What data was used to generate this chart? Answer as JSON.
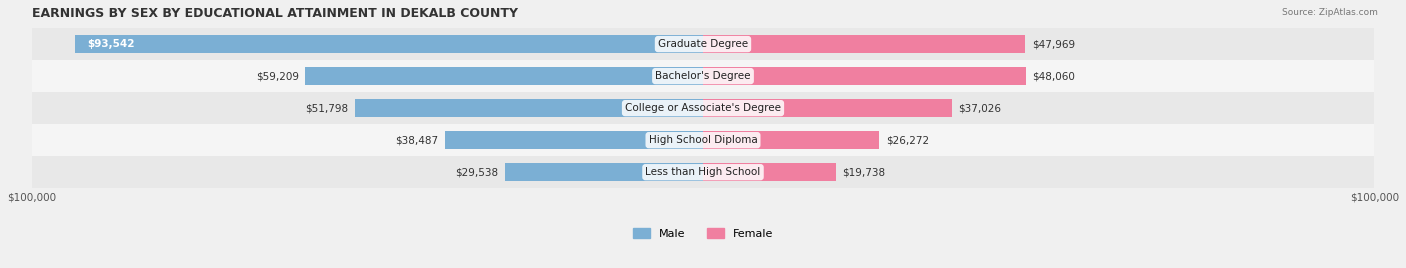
{
  "title": "EARNINGS BY SEX BY EDUCATIONAL ATTAINMENT IN DEKALB COUNTY",
  "source": "Source: ZipAtlas.com",
  "categories": [
    "Less than High School",
    "High School Diploma",
    "College or Associate's Degree",
    "Bachelor's Degree",
    "Graduate Degree"
  ],
  "male_values": [
    29538,
    38487,
    51798,
    59209,
    93542
  ],
  "female_values": [
    19738,
    26272,
    37026,
    48060,
    47969
  ],
  "male_color": "#7bafd4",
  "female_color": "#f07fa0",
  "xlim": 100000,
  "xlabel_left": "$100,000",
  "xlabel_right": "$100,000",
  "bar_height": 0.55,
  "background_color": "#f0f0f0",
  "row_bg_colors": [
    "#e8e8e8",
    "#f5f5f5"
  ],
  "label_fontsize": 7.5,
  "title_fontsize": 9,
  "legend_fontsize": 8
}
